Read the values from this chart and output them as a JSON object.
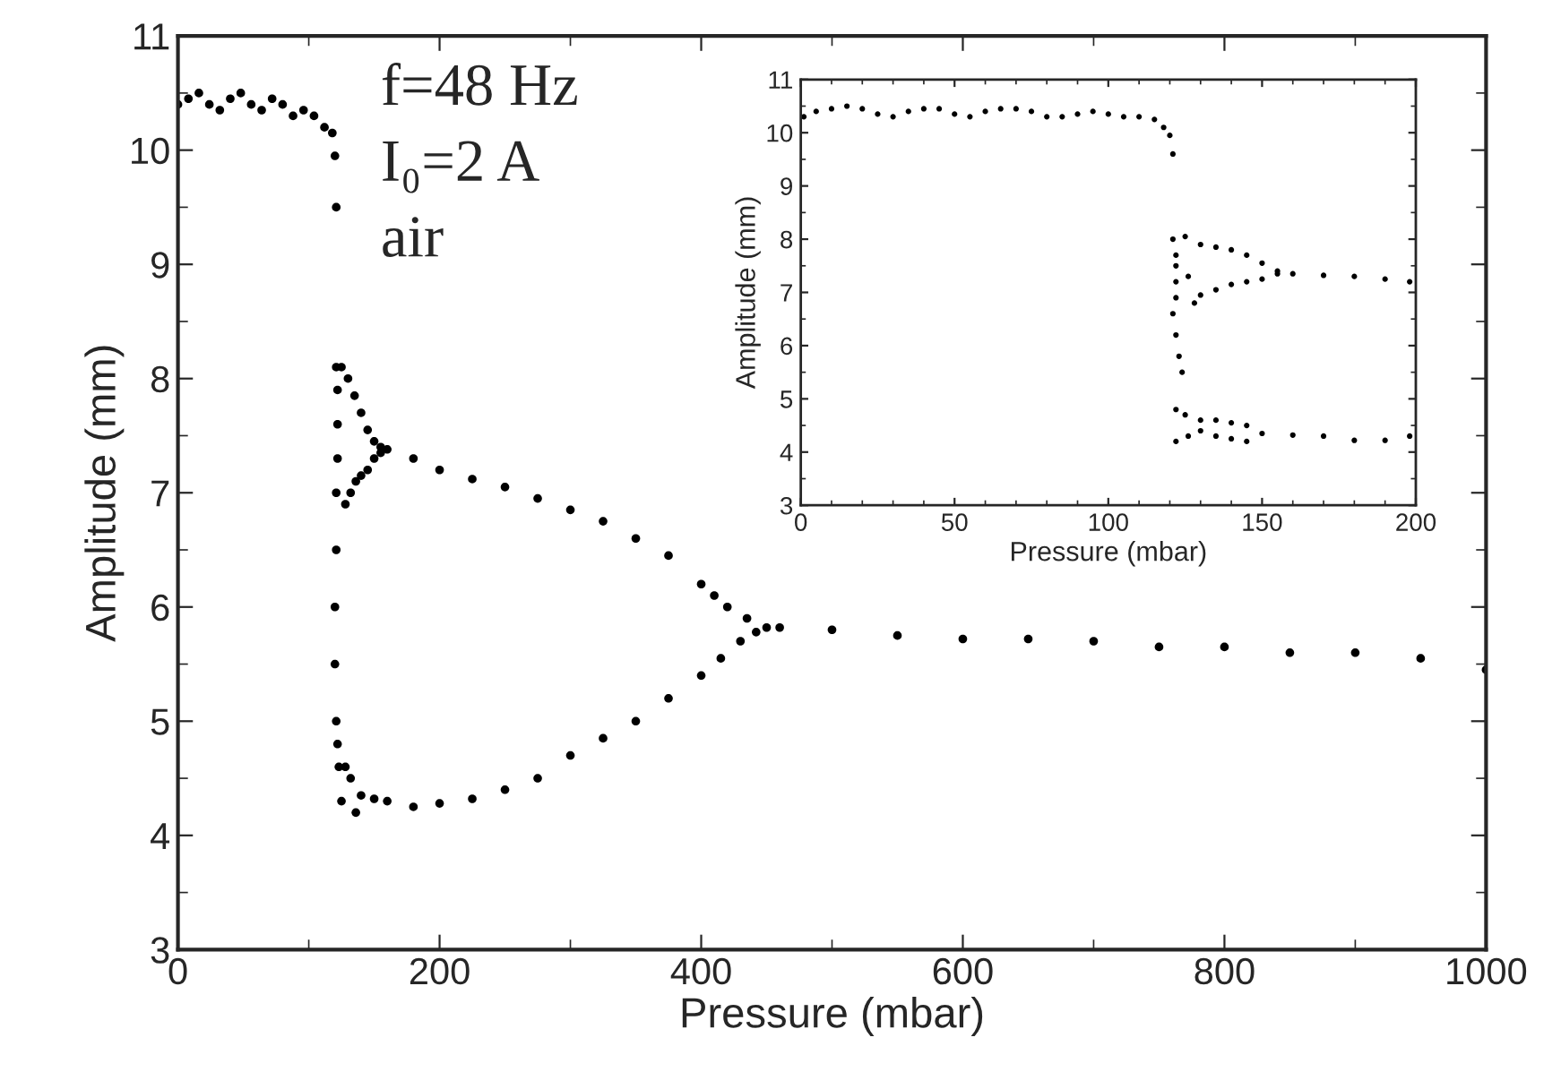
{
  "chart_data": [
    {
      "type": "scatter",
      "xlabel": "Pressure (mbar)",
      "ylabel": "Amplitude (mm)",
      "xlim": [
        0,
        1000
      ],
      "ylim": [
        3,
        11
      ],
      "xticks": [
        0,
        200,
        400,
        600,
        800,
        1000
      ],
      "yticks": [
        3,
        4,
        5,
        6,
        7,
        8,
        9,
        10,
        11
      ],
      "marker": "circle",
      "grid": false,
      "legend": false,
      "annotations": [
        "f=48 Hz",
        "I₀=2 A",
        "air"
      ],
      "series": [
        {
          "color": "#000000",
          "x": [
            0,
            8,
            16,
            24,
            32,
            40,
            48,
            56,
            64,
            72,
            80,
            88,
            96,
            104,
            112,
            118
          ],
          "values": [
            10.4,
            10.45,
            10.5,
            10.4,
            10.35,
            10.45,
            10.5,
            10.4,
            10.35,
            10.45,
            10.4,
            10.3,
            10.35,
            10.3,
            10.2,
            10.15
          ]
        },
        {
          "color": "#000000",
          "x": [
            120,
            121,
            121,
            122,
            122,
            122,
            121,
            121,
            120,
            120,
            121,
            122,
            123
          ],
          "values": [
            9.95,
            9.5,
            8.1,
            7.9,
            7.6,
            7.3,
            7.0,
            6.5,
            6.0,
            5.5,
            5.0,
            4.8,
            4.6
          ]
        },
        {
          "color": "#000000",
          "x": [
            125,
            130,
            135,
            140,
            145,
            150,
            155,
            160,
            180,
            200,
            225,
            250,
            275,
            300,
            325,
            350,
            375,
            400,
            410,
            420,
            435,
            450
          ],
          "values": [
            8.1,
            8.0,
            7.85,
            7.7,
            7.55,
            7.45,
            7.4,
            7.38,
            7.3,
            7.2,
            7.12,
            7.05,
            6.95,
            6.85,
            6.75,
            6.6,
            6.45,
            6.2,
            6.1,
            6.0,
            5.9,
            5.82
          ]
        },
        {
          "color": "#000000",
          "x": [
            128,
            132,
            136,
            140,
            145,
            150,
            155
          ],
          "values": [
            6.9,
            7.0,
            7.1,
            7.15,
            7.2,
            7.3,
            7.35
          ]
        },
        {
          "color": "#000000",
          "x": [
            125,
            128,
            132,
            136,
            140,
            150,
            160,
            180,
            200,
            225,
            250,
            275,
            300,
            325,
            350,
            375,
            400,
            415,
            430,
            442
          ],
          "values": [
            4.3,
            4.6,
            4.5,
            4.2,
            4.35,
            4.32,
            4.3,
            4.25,
            4.28,
            4.32,
            4.4,
            4.5,
            4.7,
            4.85,
            5.0,
            5.2,
            5.4,
            5.55,
            5.7,
            5.78
          ]
        },
        {
          "color": "#000000",
          "x": [
            460,
            500,
            550,
            600,
            650,
            700,
            750,
            800,
            850,
            900,
            950,
            1000
          ],
          "values": [
            5.82,
            5.8,
            5.75,
            5.72,
            5.72,
            5.7,
            5.65,
            5.65,
            5.6,
            5.6,
            5.55,
            5.45
          ]
        }
      ]
    },
    {
      "type": "scatter",
      "xlabel": "Pressure (mbar)",
      "ylabel": "Amplitude (mm)",
      "xlim": [
        0,
        200
      ],
      "ylim": [
        3,
        11
      ],
      "xticks": [
        0,
        50,
        100,
        150,
        200
      ],
      "yticks": [
        3,
        4,
        5,
        6,
        7,
        8,
        9,
        10,
        11
      ],
      "marker": "circle",
      "grid": false,
      "legend": false,
      "series": [
        {
          "color": "#000000",
          "x": [
            1,
            5,
            10,
            15,
            20,
            25,
            30,
            35,
            40,
            45,
            50,
            55,
            60,
            65,
            70,
            75,
            80,
            85,
            90,
            95,
            100,
            105,
            110,
            115,
            118
          ],
          "values": [
            10.3,
            10.4,
            10.45,
            10.5,
            10.45,
            10.35,
            10.3,
            10.4,
            10.45,
            10.45,
            10.35,
            10.3,
            10.4,
            10.45,
            10.45,
            10.4,
            10.3,
            10.3,
            10.35,
            10.4,
            10.35,
            10.3,
            10.3,
            10.25,
            10.1
          ]
        },
        {
          "color": "#000000",
          "x": [
            120,
            121,
            121,
            122,
            122,
            122,
            122,
            121,
            122,
            123,
            124,
            126,
            128
          ],
          "values": [
            9.95,
            9.6,
            8.0,
            7.7,
            7.5,
            7.2,
            6.9,
            6.6,
            6.2,
            5.8,
            5.5,
            7.3,
            6.8
          ]
        },
        {
          "color": "#000000",
          "x": [
            125,
            130,
            135,
            140,
            145,
            150,
            155,
            160,
            170,
            180,
            190,
            198
          ],
          "values": [
            8.05,
            7.9,
            7.85,
            7.8,
            7.7,
            7.55,
            7.4,
            7.35,
            7.32,
            7.3,
            7.25,
            7.2
          ]
        },
        {
          "color": "#000000",
          "x": [
            130,
            135,
            140,
            145,
            150,
            155
          ],
          "values": [
            6.95,
            7.05,
            7.15,
            7.2,
            7.25,
            7.35
          ]
        },
        {
          "color": "#000000",
          "x": [
            122,
            125,
            130,
            135,
            140,
            145,
            150,
            160,
            170,
            180,
            190,
            198
          ],
          "values": [
            4.8,
            4.7,
            4.6,
            4.6,
            4.55,
            4.5,
            4.35,
            4.32,
            4.3,
            4.22,
            4.22,
            4.3
          ]
        },
        {
          "color": "#000000",
          "x": [
            122,
            126,
            130,
            135,
            140,
            145
          ],
          "values": [
            4.2,
            4.3,
            4.4,
            4.3,
            4.25,
            4.2
          ]
        }
      ]
    }
  ]
}
